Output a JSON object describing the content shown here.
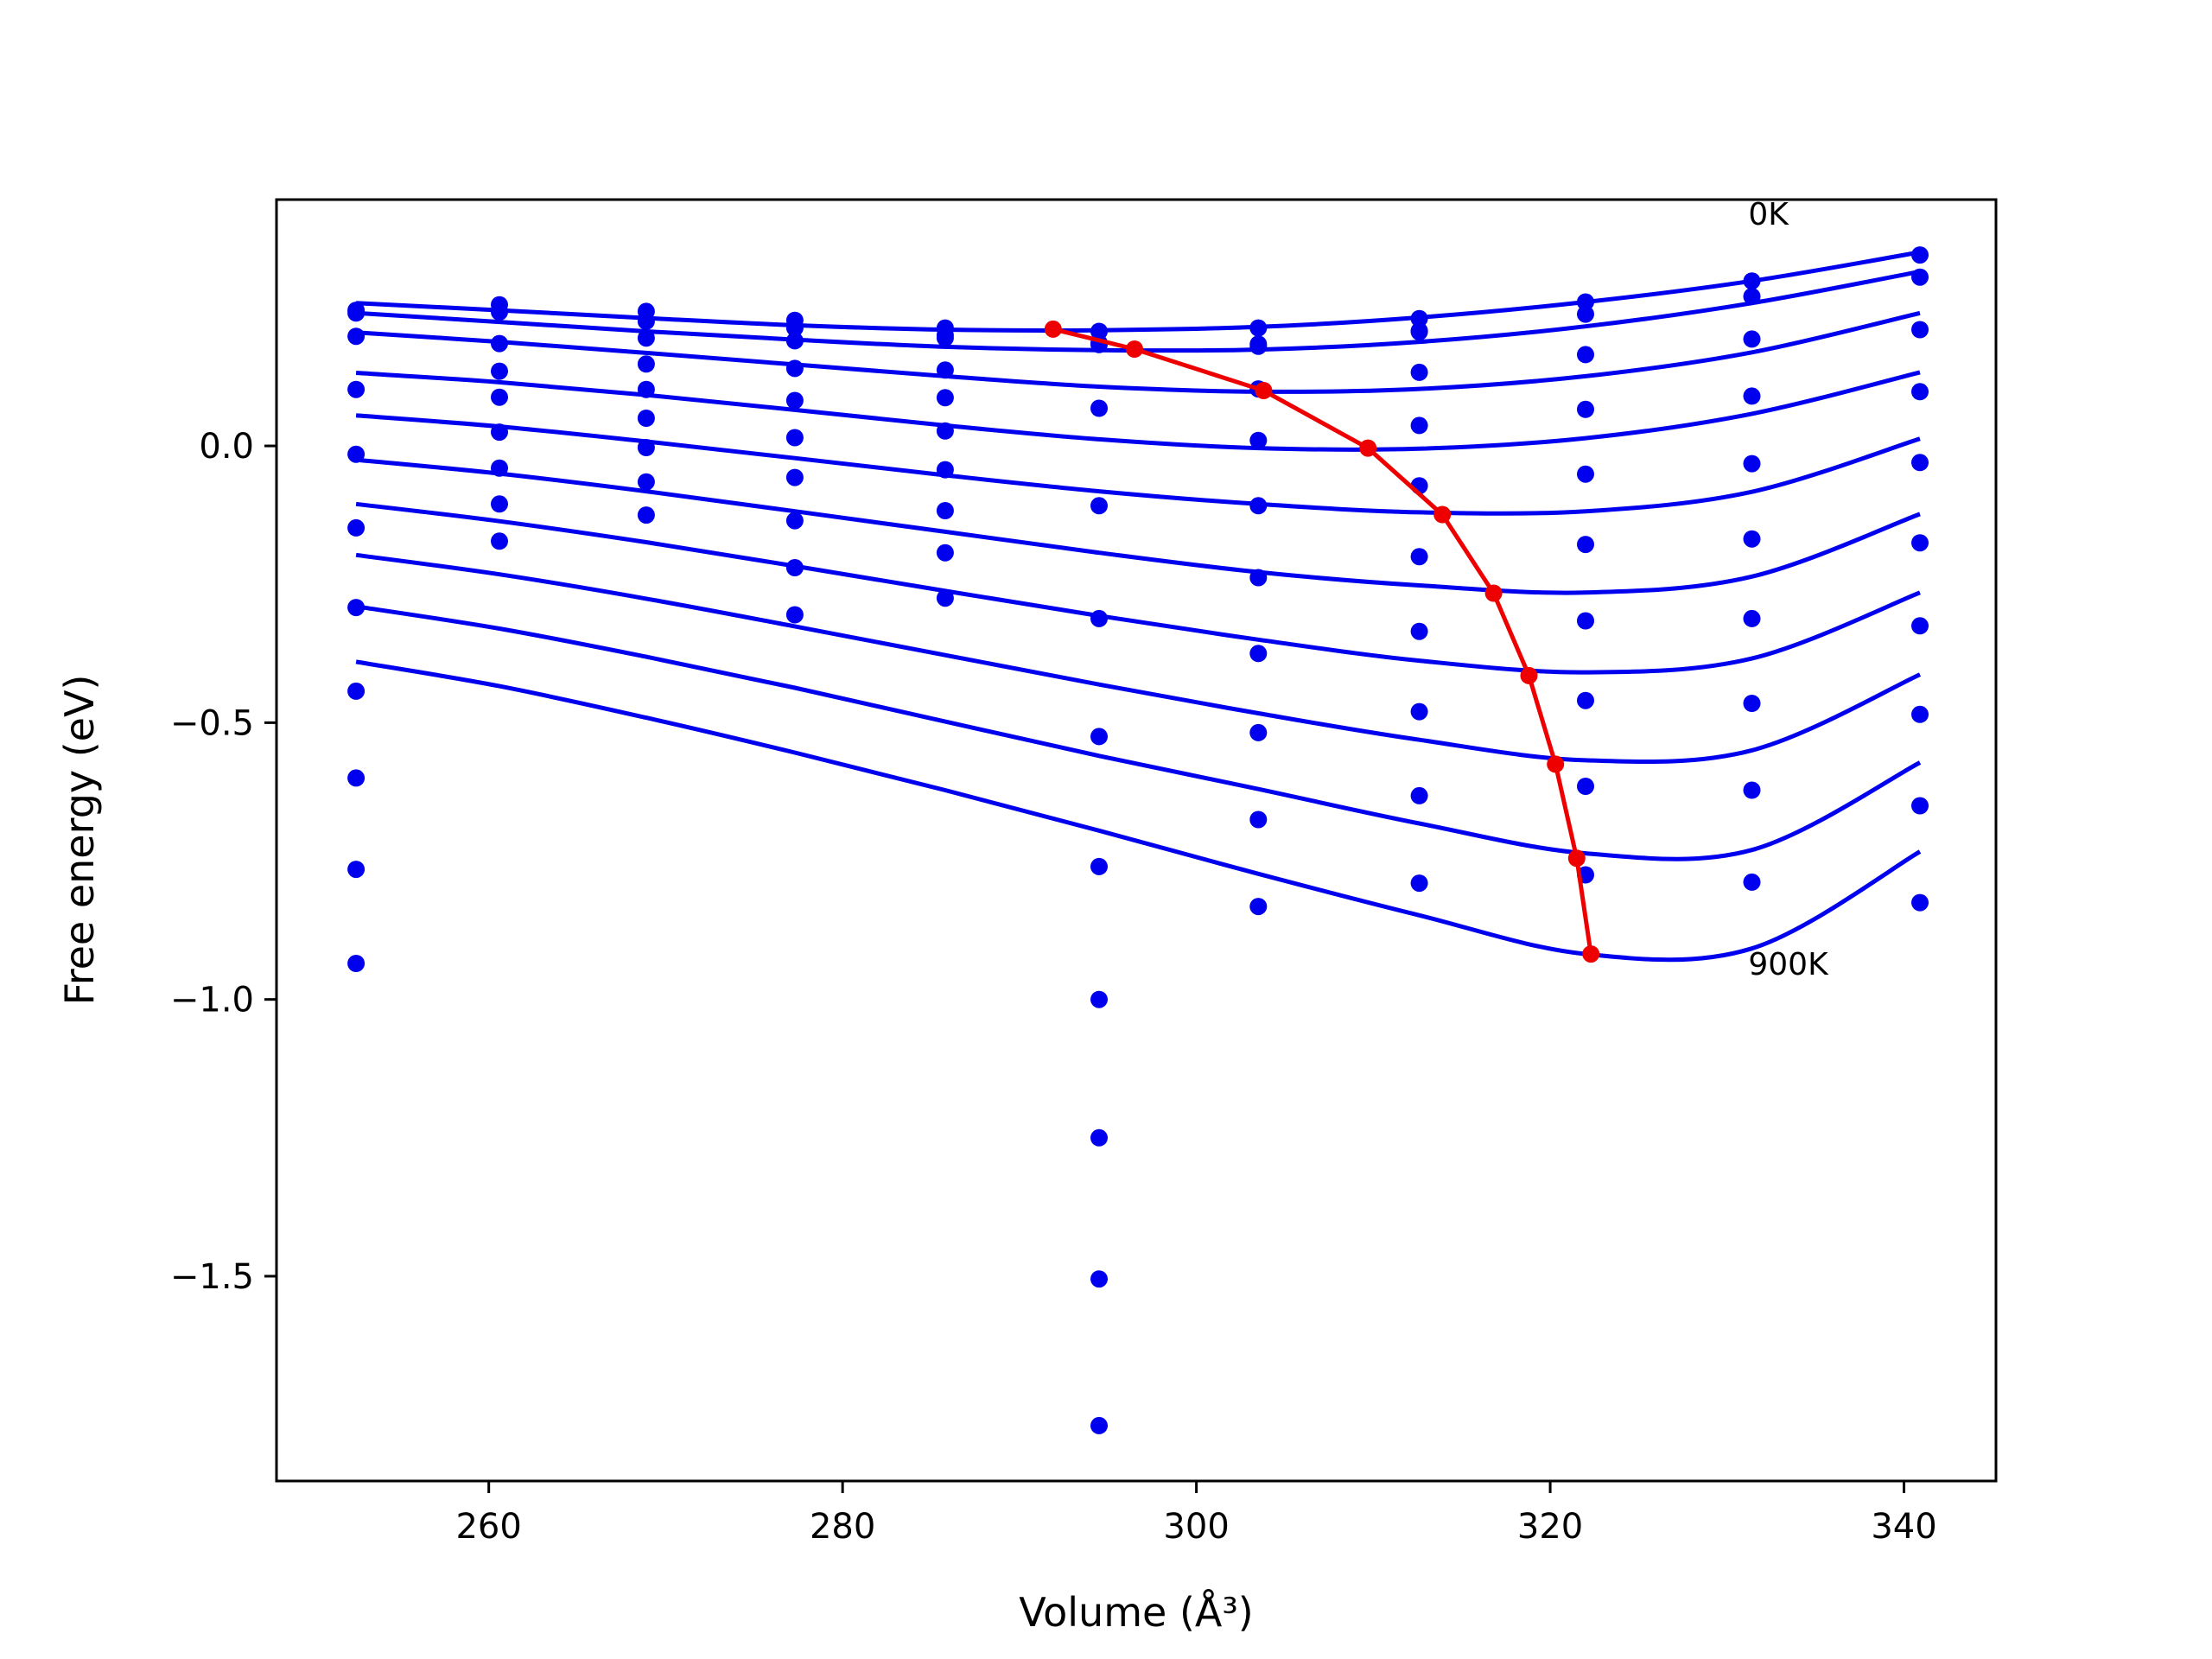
{
  "chart_data": {
    "type": "line",
    "xlabel": "Volume (Å³)",
    "ylabel": "Free energy (eV)",
    "xlim": [
      248,
      345.2
    ],
    "ylim": [
      -1.87,
      0.445
    ],
    "x_ticks": [
      260,
      280,
      300,
      320,
      340
    ],
    "x_tick_labels": [
      "260",
      "280",
      "300",
      "320",
      "340"
    ],
    "y_ticks": [
      0.0,
      -0.5,
      -1.0,
      -1.5
    ],
    "y_tick_labels": [
      "0.0",
      "−0.5",
      "−1.0",
      "−1.5"
    ],
    "grid": false,
    "colors": {
      "fits": "#0000ee",
      "points": "#0000ee",
      "minima": "#ee0000"
    },
    "annotations": [
      {
        "text": "0K",
        "x": 331.2,
        "y": 0.4
      },
      {
        "text": "900K",
        "x": 331.2,
        "y": -0.955
      }
    ],
    "volumes": [
      252.5,
      260.6,
      268.9,
      277.3,
      285.8,
      294.5,
      303.5,
      312.6,
      322.0,
      331.4,
      340.9
    ],
    "series": [
      {
        "fit": [
          0.258,
          0.245,
          0.231,
          0.218,
          0.21,
          0.209,
          0.215,
          0.232,
          0.26,
          0.298,
          0.35
        ],
        "points": [
          0.245,
          0.255,
          0.243,
          0.227,
          0.213,
          0.207,
          0.213,
          0.23,
          0.26,
          0.298,
          0.345
        ]
      },
      {
        "fit": [
          0.24,
          0.224,
          0.207,
          0.192,
          0.179,
          0.173,
          0.174,
          0.188,
          0.216,
          0.258,
          0.315
        ],
        "points": [
          0.24,
          0.242,
          0.225,
          0.213,
          0.2,
          0.186,
          0.184,
          0.206,
          0.238,
          0.27,
          0.305
        ]
      },
      {
        "fit": [
          0.205,
          0.188,
          0.168,
          0.147,
          0.126,
          0.107,
          0.098,
          0.103,
          0.126,
          0.169,
          0.24
        ],
        "points": [
          0.198,
          0.185,
          0.195,
          0.19,
          0.195,
          0.183,
          0.18,
          0.208,
          0.165,
          0.193,
          0.21
        ]
      },
      {
        "fit": [
          0.132,
          0.115,
          0.092,
          0.065,
          0.037,
          0.012,
          -0.004,
          -0.005,
          0.014,
          0.058,
          0.133
        ],
        "points": [
          0.102,
          0.135,
          0.148,
          0.14,
          0.137,
          0.068,
          0.103,
          0.133,
          0.066,
          0.09,
          0.098
        ]
      },
      {
        "fit": [
          0.055,
          0.035,
          0.008,
          -0.022,
          -0.053,
          -0.082,
          -0.105,
          -0.12,
          -0.118,
          -0.083,
          0.013
        ],
        "points": [
          -0.015,
          0.088,
          0.102,
          0.082,
          0.087,
          -0.108,
          0.01,
          0.037,
          -0.051,
          -0.032,
          -0.03
        ]
      },
      {
        "fit": [
          -0.025,
          -0.05,
          -0.082,
          -0.118,
          -0.155,
          -0.193,
          -0.228,
          -0.252,
          -0.265,
          -0.236,
          -0.123
        ],
        "points": [
          -0.148,
          0.025,
          0.05,
          0.015,
          0.027,
          -0.312,
          -0.108,
          -0.072,
          -0.178,
          -0.168,
          -0.175
        ]
      },
      {
        "fit": [
          -0.105,
          -0.136,
          -0.174,
          -0.217,
          -0.262,
          -0.307,
          -0.35,
          -0.388,
          -0.409,
          -0.384,
          -0.265
        ],
        "points": [
          -0.292,
          -0.04,
          -0.003,
          -0.057,
          -0.043,
          -0.525,
          -0.238,
          -0.2,
          -0.316,
          -0.312,
          -0.325
        ]
      },
      {
        "fit": [
          -0.197,
          -0.232,
          -0.276,
          -0.326,
          -0.378,
          -0.431,
          -0.483,
          -0.531,
          -0.568,
          -0.55,
          -0.413
        ],
        "points": [
          -0.443,
          -0.105,
          -0.065,
          -0.135,
          -0.117,
          -0.76,
          -0.375,
          -0.335,
          -0.46,
          -0.465,
          -0.485
        ]
      },
      {
        "fit": [
          -0.29,
          -0.33,
          -0.381,
          -0.437,
          -0.498,
          -0.56,
          -0.62,
          -0.682,
          -0.736,
          -0.73,
          -0.572
        ],
        "points": [
          -0.6,
          -0.172,
          -0.125,
          -0.22,
          -0.193,
          -1.0,
          -0.518,
          -0.48,
          -0.615,
          -0.622,
          -0.65
        ]
      },
      {
        "fit": [
          -0.39,
          -0.434,
          -0.491,
          -0.554,
          -0.622,
          -0.695,
          -0.773,
          -0.848,
          -0.918,
          -0.908,
          -0.733
        ],
        "points": [
          -0.765,
          null,
          null,
          -0.305,
          -0.275,
          -1.25,
          -0.675,
          -0.632,
          -0.775,
          -0.788,
          -0.825
        ]
      },
      {
        "fit": null,
        "points": [
          -0.935,
          null,
          null,
          null,
          null,
          -1.505,
          -0.832,
          -0.79,
          null,
          null,
          null
        ]
      },
      {
        "fit": null,
        "points": [
          null,
          null,
          null,
          null,
          null,
          -1.77,
          null,
          null,
          null,
          null,
          null
        ]
      }
    ],
    "minima": {
      "x": [
        291.9,
        296.5,
        303.8,
        309.7,
        313.9,
        316.8,
        318.8,
        320.3,
        321.5,
        322.3
      ],
      "y": [
        0.211,
        0.175,
        0.1,
        -0.004,
        -0.124,
        -0.266,
        -0.415,
        -0.575,
        -0.745,
        -0.918
      ]
    }
  }
}
